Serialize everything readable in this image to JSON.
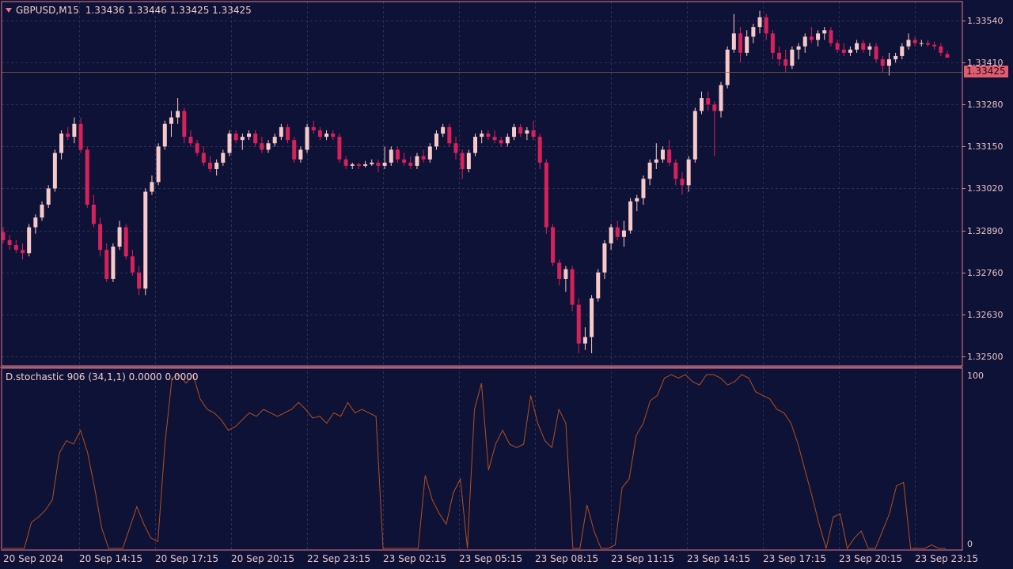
{
  "header": {
    "dropdown_icon": "triangle-down-icon",
    "symbol": "GBPUSD,M15",
    "ohlc": "1.33436 1.33446 1.33425 1.33425"
  },
  "indicator": {
    "label": "D.stochastic 906 (34,1,1) 0.0000 0.0000",
    "axis_top": "100",
    "axis_bottom": "0"
  },
  "current_price": "1.33425",
  "colors": {
    "background": "#0f1237",
    "grid": "#2b2f57",
    "border": "#e07b8c",
    "bull_candle": "#f7c9c9",
    "bear_candle": "#d6215a",
    "stochastic_line": "#b0501c",
    "price_tag": "#e05c6e"
  },
  "chart_data": {
    "type": "candlestick",
    "symbol": "GBPUSD",
    "timeframe": "M15",
    "y_ticks": [
      "1.33540",
      "1.33410",
      "1.33280",
      "1.33150",
      "1.33020",
      "1.32890",
      "1.32760",
      "1.32630",
      "1.32500"
    ],
    "ylim": [
      1.32478,
      1.33584
    ],
    "x_ticks": [
      "20 Sep 2024",
      "20 Sep 14:15",
      "20 Sep 17:15",
      "20 Sep 20:15",
      "22 Sep 23:15",
      "23 Sep 02:15",
      "23 Sep 05:15",
      "23 Sep 08:15",
      "23 Sep 11:15",
      "23 Sep 14:15",
      "23 Sep 17:15",
      "23 Sep 20:15",
      "23 Sep 23:15"
    ],
    "candles": [
      [
        1.32885,
        1.329,
        1.3285,
        1.3286
      ],
      [
        1.3286,
        1.32875,
        1.3283,
        1.32845
      ],
      [
        1.32845,
        1.3286,
        1.3282,
        1.3283
      ],
      [
        1.3283,
        1.3285,
        1.328,
        1.3282
      ],
      [
        1.3282,
        1.3291,
        1.3281,
        1.329
      ],
      [
        1.329,
        1.3294,
        1.3288,
        1.3293
      ],
      [
        1.3293,
        1.3298,
        1.3292,
        1.3297
      ],
      [
        1.3297,
        1.3303,
        1.3296,
        1.3302
      ],
      [
        1.3302,
        1.3314,
        1.3301,
        1.3313
      ],
      [
        1.3313,
        1.332,
        1.3311,
        1.3319
      ],
      [
        1.3319,
        1.3321,
        1.3317,
        1.3318
      ],
      [
        1.3318,
        1.3324,
        1.3316,
        1.3322
      ],
      [
        1.3322,
        1.3324,
        1.3313,
        1.3314
      ],
      [
        1.3314,
        1.3315,
        1.3296,
        1.3297
      ],
      [
        1.3297,
        1.33,
        1.329,
        1.3291
      ],
      [
        1.3291,
        1.3293,
        1.3281,
        1.3283
      ],
      [
        1.3283,
        1.3285,
        1.3273,
        1.3274
      ],
      [
        1.3274,
        1.3285,
        1.3273,
        1.3284
      ],
      [
        1.3284,
        1.3292,
        1.3283,
        1.329
      ],
      [
        1.329,
        1.3291,
        1.328,
        1.3281
      ],
      [
        1.3281,
        1.3283,
        1.3275,
        1.3276
      ],
      [
        1.3276,
        1.3278,
        1.3269,
        1.3271
      ],
      [
        1.3271,
        1.3302,
        1.3269,
        1.3301
      ],
      [
        1.3301,
        1.3306,
        1.33,
        1.3304
      ],
      [
        1.3304,
        1.3316,
        1.3303,
        1.3315
      ],
      [
        1.3315,
        1.3323,
        1.3314,
        1.3322
      ],
      [
        1.3322,
        1.3326,
        1.3318,
        1.3324
      ],
      [
        1.3324,
        1.333,
        1.3322,
        1.3326
      ],
      [
        1.3326,
        1.3327,
        1.3316,
        1.3318
      ],
      [
        1.3318,
        1.332,
        1.3315,
        1.3316
      ],
      [
        1.3316,
        1.3317,
        1.3312,
        1.3313
      ],
      [
        1.3313,
        1.3315,
        1.3309,
        1.331
      ],
      [
        1.331,
        1.3312,
        1.3307,
        1.3308
      ],
      [
        1.3308,
        1.3311,
        1.3306,
        1.331
      ],
      [
        1.331,
        1.3314,
        1.3309,
        1.3313
      ],
      [
        1.3313,
        1.332,
        1.3312,
        1.3319
      ],
      [
        1.3319,
        1.332,
        1.3316,
        1.3317
      ],
      [
        1.3317,
        1.3319,
        1.3314,
        1.3318
      ],
      [
        1.3318,
        1.332,
        1.3317,
        1.3319
      ],
      [
        1.3319,
        1.332,
        1.3315,
        1.3316
      ],
      [
        1.3316,
        1.3318,
        1.3313,
        1.3314
      ],
      [
        1.3314,
        1.3317,
        1.3313,
        1.3316
      ],
      [
        1.3316,
        1.3319,
        1.3315,
        1.3318
      ],
      [
        1.3318,
        1.3322,
        1.3317,
        1.3321
      ],
      [
        1.3321,
        1.3322,
        1.3316,
        1.3317
      ],
      [
        1.3317,
        1.3318,
        1.331,
        1.3311
      ],
      [
        1.3311,
        1.3315,
        1.331,
        1.3314
      ],
      [
        1.3314,
        1.3322,
        1.3313,
        1.3321
      ],
      [
        1.3321,
        1.3323,
        1.3319,
        1.332
      ],
      [
        1.332,
        1.3321,
        1.3317,
        1.3318
      ],
      [
        1.3318,
        1.332,
        1.3317,
        1.3319
      ],
      [
        1.3319,
        1.332,
        1.3317,
        1.3318
      ],
      [
        1.3318,
        1.3319,
        1.331,
        1.3311
      ],
      [
        1.3311,
        1.3312,
        1.3308,
        1.3309
      ],
      [
        1.3309,
        1.331,
        1.3308,
        1.33095
      ],
      [
        1.33095,
        1.331,
        1.3308,
        1.3309
      ],
      [
        1.3309,
        1.33105,
        1.33085,
        1.33095
      ],
      [
        1.33095,
        1.3311,
        1.3309,
        1.331
      ],
      [
        1.331,
        1.3311,
        1.3307,
        1.3309
      ],
      [
        1.3309,
        1.3315,
        1.3308,
        1.331
      ],
      [
        1.331,
        1.3315,
        1.3309,
        1.3314
      ],
      [
        1.3314,
        1.3315,
        1.331,
        1.3311
      ],
      [
        1.3311,
        1.3313,
        1.3309,
        1.331
      ],
      [
        1.331,
        1.3312,
        1.3308,
        1.3309
      ],
      [
        1.3309,
        1.3313,
        1.3308,
        1.3312
      ],
      [
        1.3312,
        1.3314,
        1.331,
        1.3311
      ],
      [
        1.3311,
        1.3316,
        1.331,
        1.3315
      ],
      [
        1.3315,
        1.332,
        1.3314,
        1.3319
      ],
      [
        1.3319,
        1.3322,
        1.3318,
        1.3321
      ],
      [
        1.3321,
        1.3322,
        1.3315,
        1.3316
      ],
      [
        1.3316,
        1.3318,
        1.3311,
        1.3313
      ],
      [
        1.3313,
        1.3314,
        1.3305,
        1.3308
      ],
      [
        1.3308,
        1.3314,
        1.3307,
        1.3313
      ],
      [
        1.3313,
        1.3319,
        1.3312,
        1.3318
      ],
      [
        1.3318,
        1.332,
        1.3316,
        1.3319
      ],
      [
        1.3319,
        1.332,
        1.3317,
        1.3318
      ],
      [
        1.3318,
        1.332,
        1.3316,
        1.3317
      ],
      [
        1.3317,
        1.3318,
        1.3315,
        1.3316
      ],
      [
        1.3316,
        1.3319,
        1.3315,
        1.3318
      ],
      [
        1.3318,
        1.3322,
        1.3317,
        1.3321
      ],
      [
        1.3321,
        1.3322,
        1.3318,
        1.3319
      ],
      [
        1.3319,
        1.3321,
        1.3317,
        1.332
      ],
      [
        1.332,
        1.3323,
        1.3317,
        1.3318
      ],
      [
        1.3318,
        1.3319,
        1.3308,
        1.331
      ],
      [
        1.331,
        1.3311,
        1.3288,
        1.329
      ],
      [
        1.329,
        1.3291,
        1.3278,
        1.3279
      ],
      [
        1.3279,
        1.328,
        1.3272,
        1.3274
      ],
      [
        1.3274,
        1.3278,
        1.327,
        1.3277
      ],
      [
        1.3277,
        1.3278,
        1.3264,
        1.3266
      ],
      [
        1.3266,
        1.3268,
        1.3251,
        1.3254
      ],
      [
        1.3254,
        1.3259,
        1.3252,
        1.3256
      ],
      [
        1.3256,
        1.3269,
        1.3251,
        1.3268
      ],
      [
        1.3268,
        1.3277,
        1.3267,
        1.3276
      ],
      [
        1.3276,
        1.3286,
        1.3274,
        1.3285
      ],
      [
        1.3285,
        1.3291,
        1.3283,
        1.329
      ],
      [
        1.329,
        1.3292,
        1.3286,
        1.3287
      ],
      [
        1.3287,
        1.3292,
        1.3284,
        1.3289
      ],
      [
        1.3289,
        1.3299,
        1.3288,
        1.3298
      ],
      [
        1.3298,
        1.33,
        1.3295,
        1.3299
      ],
      [
        1.3299,
        1.3306,
        1.3297,
        1.3305
      ],
      [
        1.3305,
        1.3311,
        1.3303,
        1.331
      ],
      [
        1.331,
        1.3316,
        1.3308,
        1.3311
      ],
      [
        1.3311,
        1.3315,
        1.331,
        1.3314
      ],
      [
        1.3314,
        1.3317,
        1.3309,
        1.331
      ],
      [
        1.331,
        1.3311,
        1.3303,
        1.3305
      ],
      [
        1.3305,
        1.3307,
        1.33,
        1.3303
      ],
      [
        1.3303,
        1.3312,
        1.3301,
        1.3311
      ],
      [
        1.3311,
        1.3327,
        1.331,
        1.3326
      ],
      [
        1.3326,
        1.3332,
        1.3325,
        1.333
      ],
      [
        1.333,
        1.3332,
        1.3326,
        1.3328
      ],
      [
        1.3328,
        1.3329,
        1.3312,
        1.3326
      ],
      [
        1.3326,
        1.3335,
        1.3324,
        1.3334
      ],
      [
        1.3334,
        1.3346,
        1.3333,
        1.3345
      ],
      [
        1.3345,
        1.3356,
        1.3344,
        1.335
      ],
      [
        1.335,
        1.3352,
        1.3341,
        1.3344
      ],
      [
        1.3344,
        1.3351,
        1.3343,
        1.3349
      ],
      [
        1.3349,
        1.3353,
        1.3347,
        1.3352
      ],
      [
        1.3352,
        1.3357,
        1.335,
        1.3355
      ],
      [
        1.3355,
        1.3356,
        1.3348,
        1.335
      ],
      [
        1.335,
        1.3351,
        1.3342,
        1.3344
      ],
      [
        1.3344,
        1.3346,
        1.334,
        1.3342
      ],
      [
        1.3342,
        1.3345,
        1.3338,
        1.334
      ],
      [
        1.334,
        1.3346,
        1.3339,
        1.3345
      ],
      [
        1.3345,
        1.3347,
        1.3342,
        1.3346
      ],
      [
        1.3346,
        1.335,
        1.3344,
        1.3349
      ],
      [
        1.3349,
        1.3352,
        1.3347,
        1.3348
      ],
      [
        1.3348,
        1.3351,
        1.3346,
        1.335
      ],
      [
        1.335,
        1.3352,
        1.3348,
        1.3351
      ],
      [
        1.3351,
        1.3352,
        1.3346,
        1.3347
      ],
      [
        1.3347,
        1.3348,
        1.3344,
        1.3345
      ],
      [
        1.3345,
        1.3347,
        1.3343,
        1.3344
      ],
      [
        1.3344,
        1.3346,
        1.3343,
        1.3345
      ],
      [
        1.3345,
        1.3348,
        1.3344,
        1.3347
      ],
      [
        1.3347,
        1.3348,
        1.3344,
        1.3345
      ],
      [
        1.3345,
        1.3347,
        1.3343,
        1.3346
      ],
      [
        1.3346,
        1.3347,
        1.3341,
        1.3342
      ],
      [
        1.3342,
        1.3343,
        1.3338,
        1.334
      ],
      [
        1.334,
        1.3344,
        1.3337,
        1.3342
      ],
      [
        1.3342,
        1.3344,
        1.3341,
        1.3343
      ],
      [
        1.3343,
        1.3347,
        1.3342,
        1.3346
      ],
      [
        1.3346,
        1.335,
        1.3345,
        1.3348
      ],
      [
        1.3348,
        1.3349,
        1.3346,
        1.3347
      ],
      [
        1.3347,
        1.3348,
        1.3346,
        1.3347
      ],
      [
        1.3347,
        1.3348,
        1.3346,
        1.33465
      ],
      [
        1.33465,
        1.33475,
        1.3345,
        1.3346
      ],
      [
        1.3346,
        1.3347,
        1.3343,
        1.3344
      ],
      [
        1.33436,
        1.33446,
        1.33425,
        1.33425
      ]
    ],
    "stochastic": [
      0,
      0,
      0,
      0,
      15,
      18,
      22,
      28,
      55,
      62,
      60,
      68,
      55,
      35,
      12,
      0,
      0,
      0,
      12,
      24,
      14,
      6,
      4,
      60,
      98,
      100,
      95,
      100,
      86,
      80,
      78,
      74,
      68,
      70,
      74,
      78,
      76,
      80,
      78,
      76,
      78,
      80,
      84,
      80,
      75,
      76,
      72,
      78,
      76,
      84,
      78,
      80,
      78,
      76,
      0,
      0,
      0,
      0,
      0,
      0,
      42,
      28,
      20,
      14,
      32,
      40,
      0,
      80,
      95,
      45,
      60,
      68,
      60,
      58,
      60,
      88,
      72,
      62,
      58,
      80,
      72,
      0,
      0,
      25,
      10,
      0,
      0,
      2,
      35,
      40,
      65,
      72,
      85,
      88,
      98,
      100,
      98,
      100,
      96,
      94,
      100,
      100,
      98,
      94,
      96,
      100,
      98,
      90,
      88,
      86,
      80,
      78,
      72,
      60,
      45,
      30,
      14,
      0,
      18,
      20,
      0,
      6,
      10,
      0,
      0,
      10,
      20,
      36,
      38,
      0,
      0,
      0,
      2,
      0,
      0
    ],
    "stochastic_ylim": [
      0,
      100
    ]
  }
}
